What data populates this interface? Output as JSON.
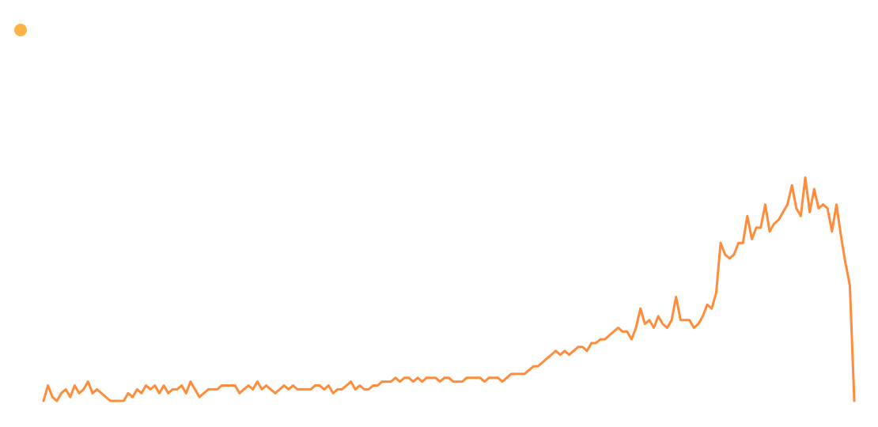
{
  "colors": {
    "series": "#ff8c3a",
    "legend_marker": "#ffb347",
    "background": "#ffffff"
  },
  "legend": {
    "label": ""
  },
  "chart_data": {
    "type": "line",
    "title": "",
    "xlabel": "",
    "ylabel": "",
    "grid": false,
    "legend_position": "top-left",
    "xlim": [
      0,
      182
    ],
    "ylim": [
      0,
      100
    ],
    "series": [
      {
        "values": [
          0,
          4,
          1,
          0,
          2,
          3,
          1,
          4,
          2,
          3,
          5,
          2,
          3,
          2,
          1,
          0,
          0,
          0,
          0,
          2,
          1,
          3,
          2,
          4,
          3,
          4,
          2,
          4,
          2,
          3,
          3,
          4,
          2,
          5,
          3,
          1,
          2,
          3,
          3,
          3,
          4,
          4,
          4,
          4,
          2,
          3,
          4,
          3,
          5,
          3,
          4,
          3,
          2,
          3,
          4,
          3,
          4,
          3,
          3,
          3,
          3,
          4,
          4,
          3,
          4,
          2,
          3,
          3,
          4,
          5,
          3,
          4,
          3,
          3,
          4,
          4,
          5,
          5,
          5,
          6,
          5,
          6,
          6,
          5,
          6,
          5,
          6,
          6,
          6,
          5,
          6,
          6,
          5,
          5,
          5,
          6,
          6,
          6,
          6,
          5,
          6,
          6,
          6,
          5,
          6,
          7,
          7,
          7,
          7,
          8,
          9,
          9,
          10,
          11,
          12,
          13,
          12,
          13,
          12,
          13,
          14,
          14,
          13,
          15,
          15,
          16,
          16,
          17,
          18,
          19,
          18,
          18,
          16,
          19,
          24,
          20,
          21,
          19,
          22,
          20,
          19,
          21,
          27,
          21,
          21,
          21,
          19,
          20,
          22,
          25,
          24,
          28,
          41,
          38,
          37,
          38,
          41,
          41,
          48,
          42,
          45,
          45,
          51,
          44,
          46,
          47,
          49,
          51,
          56,
          50,
          48,
          58,
          49,
          55,
          50,
          51,
          50,
          44,
          51,
          43,
          36,
          30,
          0
        ]
      }
    ]
  }
}
